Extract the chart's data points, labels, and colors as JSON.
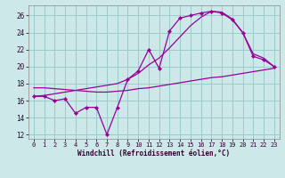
{
  "bg_color": "#cce8e8",
  "line_color": "#990099",
  "grid_color": "#99cccc",
  "xlim": [
    -0.5,
    23.5
  ],
  "ylim": [
    11.5,
    27.2
  ],
  "xticks": [
    0,
    1,
    2,
    3,
    4,
    5,
    6,
    7,
    8,
    9,
    10,
    11,
    12,
    13,
    14,
    15,
    16,
    17,
    18,
    19,
    20,
    21,
    22,
    23
  ],
  "yticks": [
    12,
    14,
    16,
    18,
    20,
    22,
    24,
    26
  ],
  "xlabel": "Windchill (Refroidissement éolien,°C)",
  "y_volatile": [
    16.5,
    16.5,
    16.0,
    16.2,
    14.5,
    15.2,
    15.2,
    12.0,
    15.2,
    18.5,
    19.5,
    22.0,
    19.8,
    24.2,
    25.7,
    26.0,
    26.3,
    26.5,
    26.3,
    25.5,
    24.0,
    21.2,
    20.8,
    20.0
  ],
  "y_smooth": [
    16.5,
    16.6,
    16.8,
    17.0,
    17.2,
    17.4,
    17.6,
    17.8,
    18.0,
    18.5,
    19.2,
    20.2,
    21.0,
    22.2,
    23.5,
    24.8,
    25.8,
    26.5,
    26.4,
    25.6,
    24.0,
    21.5,
    21.0,
    20.0
  ],
  "y_flat": [
    17.5,
    17.5,
    17.4,
    17.3,
    17.2,
    17.1,
    17.0,
    17.0,
    17.1,
    17.2,
    17.4,
    17.5,
    17.7,
    17.9,
    18.1,
    18.3,
    18.5,
    18.7,
    18.8,
    19.0,
    19.2,
    19.4,
    19.6,
    19.8
  ],
  "tick_fontsize": 5.0,
  "xlabel_fontsize": 5.5
}
